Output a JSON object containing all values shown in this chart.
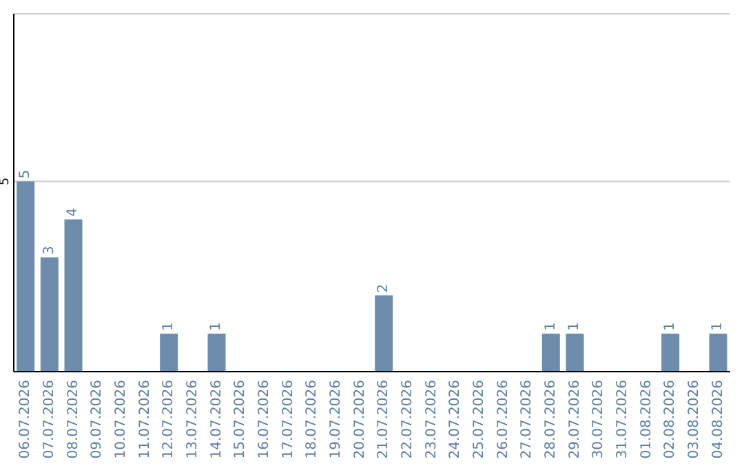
{
  "chart_data": {
    "type": "bar",
    "categories": [
      "06.07.2026",
      "07.07.2026",
      "08.07.2026",
      "09.07.2026",
      "10.07.2026",
      "11.07.2026",
      "12.07.2026",
      "13.07.2026",
      "14.07.2026",
      "15.07.2026",
      "16.07.2026",
      "17.07.2026",
      "18.07.2026",
      "19.07.2026",
      "20.07.2026",
      "21.07.2026",
      "22.07.2026",
      "23.07.2026",
      "24.07.2026",
      "25.07.2026",
      "26.07.2026",
      "27.07.2026",
      "28.07.2026",
      "29.07.2026",
      "30.07.2026",
      "31.07.2026",
      "01.08.2026",
      "02.08.2026",
      "03.08.2026",
      "04.08.2026"
    ],
    "values": [
      5,
      3,
      4,
      0,
      0,
      0,
      1,
      0,
      1,
      0,
      0,
      0,
      0,
      0,
      0,
      2,
      0,
      0,
      0,
      0,
      0,
      0,
      1,
      1,
      0,
      0,
      0,
      1,
      0,
      1
    ],
    "value_labels": [
      "5",
      "3",
      "4",
      null,
      null,
      null,
      "1",
      null,
      "1",
      null,
      null,
      null,
      null,
      null,
      null,
      "2",
      null,
      null,
      null,
      null,
      null,
      null,
      "1",
      "1",
      null,
      null,
      null,
      "1",
      null,
      "1"
    ],
    "color": "#6e8cac",
    "ylim": [
      0,
      9.4
    ],
    "yticks": [
      5
    ],
    "grid": "y"
  }
}
